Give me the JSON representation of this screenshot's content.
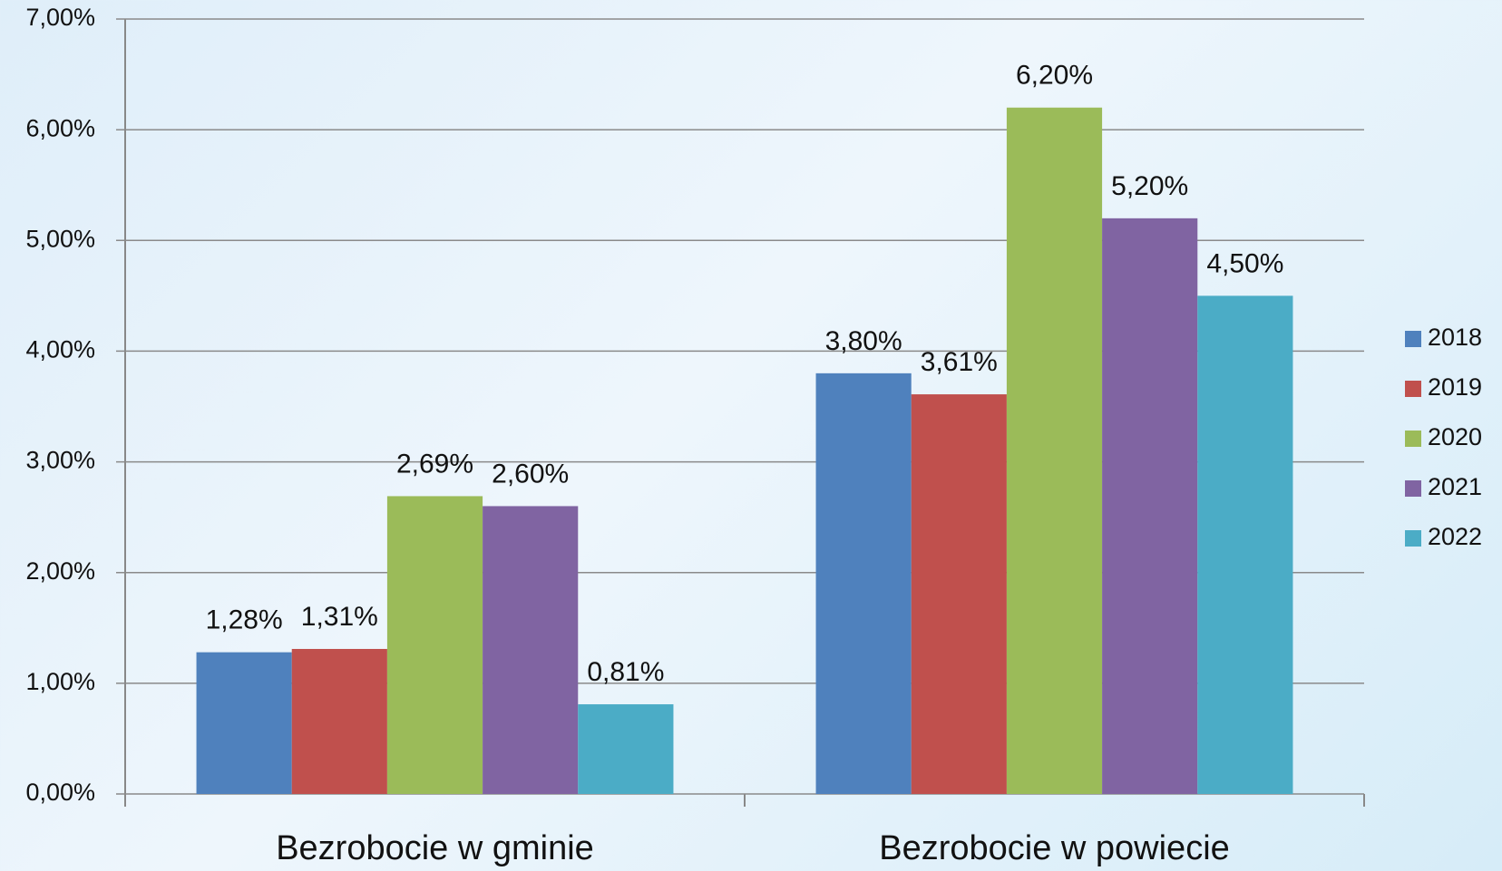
{
  "chart_data": {
    "type": "bar",
    "categories": [
      "Bezrobocie w gminie",
      "Bezrobocie w powiecie"
    ],
    "series": [
      {
        "name": "2018",
        "color": "#4f81bd",
        "values": [
          1.28,
          3.8
        ],
        "value_labels": [
          "1,28%",
          "3,80%"
        ]
      },
      {
        "name": "2019",
        "color": "#c0504d",
        "values": [
          1.31,
          3.61
        ],
        "value_labels": [
          "1,31%",
          "3,61%"
        ]
      },
      {
        "name": "2020",
        "color": "#9bbb59",
        "values": [
          2.69,
          6.2
        ],
        "value_labels": [
          "2,69%",
          "6,20%"
        ]
      },
      {
        "name": "2021",
        "color": "#8064a2",
        "values": [
          2.6,
          5.2
        ],
        "value_labels": [
          "2,60%",
          "5,20%"
        ]
      },
      {
        "name": "2022",
        "color": "#4bacc6",
        "values": [
          0.81,
          4.5
        ],
        "value_labels": [
          "0,81%",
          "4,50%"
        ]
      }
    ],
    "ylim": [
      0,
      7
    ],
    "yticks": [
      {
        "value": 0,
        "label": "0,00%"
      },
      {
        "value": 1,
        "label": "1,00%"
      },
      {
        "value": 2,
        "label": "2,00%"
      },
      {
        "value": 3,
        "label": "3,00%"
      },
      {
        "value": 4,
        "label": "4,00%"
      },
      {
        "value": 5,
        "label": "5,00%"
      },
      {
        "value": 6,
        "label": "6,00%"
      },
      {
        "value": 7,
        "label": "7,00%"
      }
    ],
    "grid": true,
    "legend": "right"
  }
}
